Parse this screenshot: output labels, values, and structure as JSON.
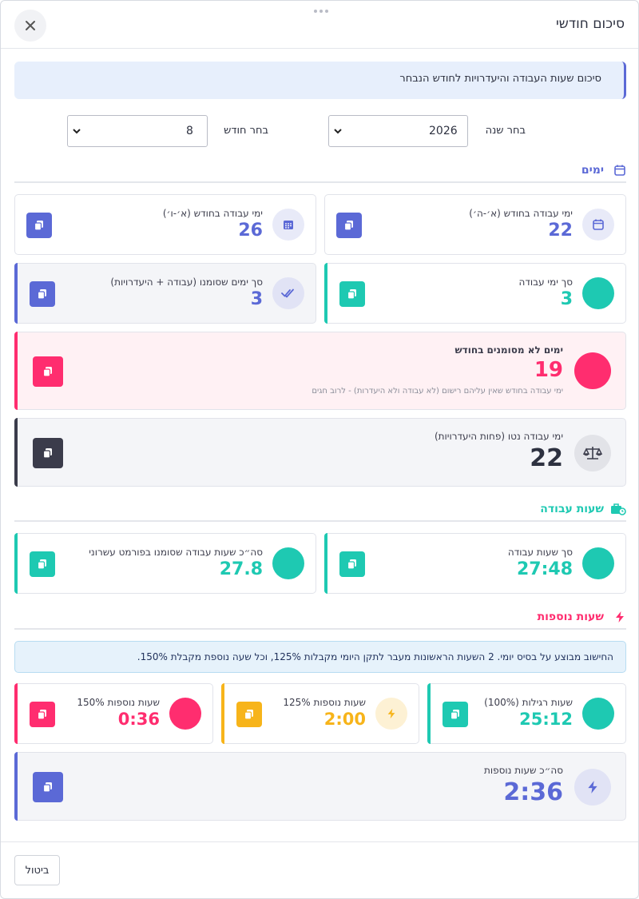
{
  "header": {
    "title": "סיכום חודשי",
    "close_icon": "close-icon"
  },
  "info_banner": "סיכום שעות העבודה והיעדרויות לחודש הנבחר",
  "filters": {
    "year_label": "בחר שנה",
    "year_value": "2026",
    "month_label": "בחר חודש",
    "month_value": "8"
  },
  "sections": {
    "days": {
      "title": "ימים",
      "color": "#5b69d6"
    },
    "work_hours": {
      "title": "שעות עבודה",
      "color": "#1ec9b2"
    },
    "overtime": {
      "title": "שעות נוספות",
      "color": "#ff2d6f"
    }
  },
  "days_cards": {
    "workdays_sun_thu": {
      "label": "ימי עבודה בחודש (א׳-ה׳)",
      "value": "22"
    },
    "workdays_sun_fri": {
      "label": "ימי עבודה בחודש (א׳-ו׳)",
      "value": "26"
    },
    "total_workdays": {
      "label": "סך ימי עבודה",
      "value": "3"
    },
    "total_marked": {
      "label": "סך ימים שסומנו (עבודה + היעדרויות)",
      "value": "3"
    },
    "unmarked": {
      "label": "ימים לא מסומנים בחודש",
      "value": "19",
      "sub": "ימי עבודה בחודש שאין עליהם רישום (לא עבודה ולא היעדרות) - לרוב חגים"
    },
    "net_workdays": {
      "label": "ימי עבודה נטו (פחות היעדרויות)",
      "value": "22"
    }
  },
  "hours_cards": {
    "total_hours": {
      "label": "סך שעות עבודה",
      "value": "27:48"
    },
    "decimal_hours": {
      "label": "סה״כ שעות עבודה שסומנו בפורמט עשרוני",
      "value": "27.8"
    }
  },
  "calc_note": "החישוב מבוצע על בסיס יומי. 2 השעות הראשונות מעבר לתקן היומי מקבלות 125%, וכל שעה נוספת מקבלת 150%.",
  "overtime_cards": {
    "regular": {
      "label": "שעות רגילות (100%)",
      "value": "25:12"
    },
    "ot125": {
      "label": "שעות נוספות 125%",
      "value": "2:00"
    },
    "ot150": {
      "label": "שעות נוספות 150%",
      "value": "0:36"
    },
    "total": {
      "label": "סה״כ שעות נוספות",
      "value": "2:36"
    }
  },
  "footer": {
    "cancel_label": "ביטול"
  },
  "colors": {
    "purple": "#5b69d6",
    "teal": "#1ec9b2",
    "pink": "#ff2d6f",
    "amber": "#f7b41a",
    "dark": "#3b3c4b"
  }
}
